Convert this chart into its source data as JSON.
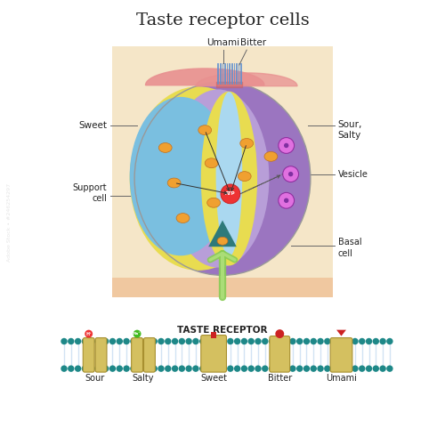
{
  "title": "Taste receptor cells",
  "bg_color": "#ffffff",
  "tissue_color": "#f5e6c8",
  "tissue_bottom_color": "#f0c8a0",
  "taste_receptor_title": "TASTE RECEPTOR",
  "taste_labels": [
    "Sour",
    "Salty",
    "Sweet",
    "Bitter",
    "Umami"
  ],
  "purple": "#9b75c0",
  "lavender": "#b89ed8",
  "yellow": "#e8dc50",
  "blue": "#7abfe0",
  "light_blue": "#aad8f0",
  "green_stem": "#88cc55",
  "teal_basal": "#2e7a7a",
  "orange_nucleus": "#f0a030",
  "vesicle_outer": "#d878d8",
  "vesicle_inner": "#a040a0",
  "atp_color": "#ee3333",
  "pink_flap": "#e89090",
  "microvillus_color": "#6090d0",
  "membrane_color": "#d4c060",
  "bead_color": "#1e8888",
  "lipid_color": "#c0d8f0",
  "H_color": "#ee3333",
  "Na_color": "#44bb22",
  "marker_color": "#cc2222",
  "line_color": "#666666",
  "text_color": "#222222"
}
